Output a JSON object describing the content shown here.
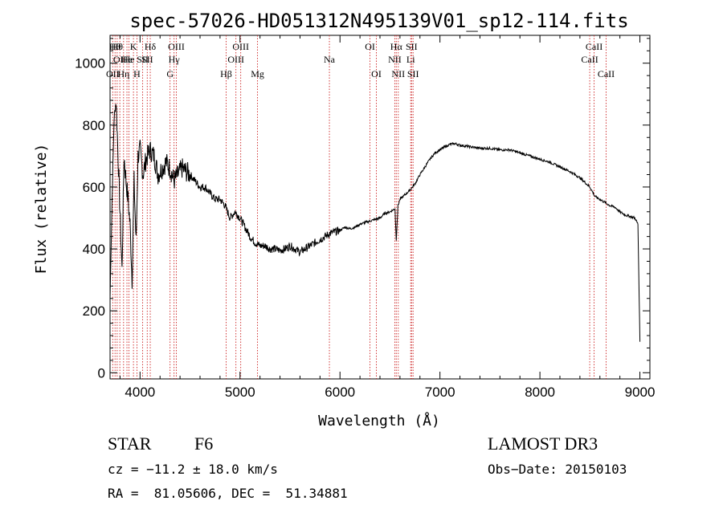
{
  "chart_data": {
    "type": "line",
    "title": "spec-57026-HD051312N495139V01_sp12-114.fits",
    "xlabel": "Wavelength (Å)",
    "ylabel": "Flux (relative)",
    "xlim": [
      3700,
      9100
    ],
    "ylim": [
      -20,
      1090
    ],
    "xticks": [
      4000,
      5000,
      6000,
      7000,
      8000,
      9000
    ],
    "xtick_labels": [
      "4000",
      "5000",
      "6000",
      "7000",
      "8000",
      "9000"
    ],
    "yticks": [
      0,
      200,
      400,
      600,
      800,
      1000
    ],
    "ytick_labels": [
      "0",
      "200",
      "400",
      "600",
      "800",
      "1000"
    ],
    "series": [
      {
        "name": "flux",
        "x": [
          3700,
          3720,
          3740,
          3760,
          3780,
          3800,
          3820,
          3840,
          3860,
          3880,
          3900,
          3920,
          3940,
          3960,
          3980,
          4000,
          4030,
          4060,
          4100,
          4140,
          4180,
          4220,
          4260,
          4300,
          4340,
          4380,
          4420,
          4460,
          4500,
          4550,
          4600,
          4650,
          4700,
          4750,
          4800,
          4850,
          4900,
          4950,
          5000,
          5050,
          5100,
          5150,
          5200,
          5250,
          5300,
          5350,
          5400,
          5450,
          5500,
          5550,
          5600,
          5650,
          5700,
          5750,
          5800,
          5850,
          5900,
          5950,
          6000,
          6050,
          6100,
          6150,
          6200,
          6250,
          6300,
          6350,
          6400,
          6450,
          6500,
          6550,
          6563,
          6580,
          6600,
          6650,
          6700,
          6750,
          6800,
          6850,
          6900,
          6950,
          7000,
          7050,
          7100,
          7150,
          7200,
          7300,
          7400,
          7500,
          7600,
          7700,
          7800,
          7900,
          8000,
          8100,
          8200,
          8300,
          8400,
          8500,
          8550,
          8600,
          8650,
          8700,
          8750,
          8800,
          8850,
          8900,
          8950,
          8980,
          9000
        ],
        "y": [
          240,
          560,
          820,
          880,
          700,
          520,
          330,
          700,
          620,
          560,
          480,
          300,
          620,
          420,
          700,
          720,
          640,
          690,
          720,
          700,
          640,
          660,
          680,
          660,
          620,
          640,
          660,
          650,
          640,
          620,
          600,
          600,
          580,
          560,
          560,
          540,
          500,
          520,
          500,
          470,
          440,
          420,
          410,
          410,
          400,
          400,
          395,
          400,
          410,
          400,
          390,
          400,
          410,
          420,
          430,
          440,
          450,
          455,
          460,
          470,
          465,
          470,
          480,
          485,
          490,
          495,
          500,
          515,
          520,
          530,
          430,
          540,
          560,
          575,
          590,
          610,
          640,
          665,
          690,
          710,
          720,
          730,
          738,
          740,
          735,
          730,
          725,
          725,
          720,
          720,
          710,
          700,
          690,
          680,
          665,
          650,
          630,
          600,
          570,
          560,
          550,
          540,
          535,
          520,
          510,
          505,
          500,
          480,
          100
        ]
      }
    ],
    "lines": [
      {
        "wl": 3727,
        "label": "OII",
        "row": 3
      },
      {
        "wl": 3750,
        "label": "Hθ",
        "row": 1
      },
      {
        "wl": 3771,
        "label": "Hθ",
        "row": 1
      },
      {
        "wl": 3798,
        "label": "OII",
        "row": 2
      },
      {
        "wl": 3835,
        "label": "Hη",
        "row": 3
      },
      {
        "wl": 3869,
        "label": "He",
        "row": 2
      },
      {
        "wl": 3889,
        "label": "He",
        "row": 2
      },
      {
        "wl": 3934,
        "label": "K",
        "row": 1
      },
      {
        "wl": 3969,
        "label": "H",
        "row": 3
      },
      {
        "wl": 4026,
        "label": "SII",
        "row": 2
      },
      {
        "wl": 4072,
        "label": "SII",
        "row": 2
      },
      {
        "wl": 4102,
        "label": "Hδ",
        "row": 1
      },
      {
        "wl": 4300,
        "label": "G",
        "row": 3
      },
      {
        "wl": 4340,
        "label": "Hγ",
        "row": 2
      },
      {
        "wl": 4363,
        "label": "OIII",
        "row": 1
      },
      {
        "wl": 4861,
        "label": "Hβ",
        "row": 3
      },
      {
        "wl": 4959,
        "label": "OIII",
        "row": 2
      },
      {
        "wl": 5007,
        "label": "OIII",
        "row": 1
      },
      {
        "wl": 5175,
        "label": "Mg",
        "row": 3
      },
      {
        "wl": 5894,
        "label": "Na",
        "row": 2
      },
      {
        "wl": 6300,
        "label": "OI",
        "row": 1
      },
      {
        "wl": 6364,
        "label": "OI",
        "row": 3
      },
      {
        "wl": 6548,
        "label": "NII",
        "row": 2
      },
      {
        "wl": 6563,
        "label": "Hα",
        "row": 1
      },
      {
        "wl": 6583,
        "label": "NII",
        "row": 3
      },
      {
        "wl": 6707,
        "label": "Li",
        "row": 2
      },
      {
        "wl": 6716,
        "label": "SII",
        "row": 1
      },
      {
        "wl": 6731,
        "label": "SII",
        "row": 3
      },
      {
        "wl": 8498,
        "label": "CaII",
        "row": 2
      },
      {
        "wl": 8542,
        "label": "CaII",
        "row": 1
      },
      {
        "wl": 8662,
        "label": "CaII",
        "row": 3
      }
    ]
  },
  "info": {
    "class": "STAR",
    "subclass": "F6",
    "survey": "LAMOST DR3",
    "cz": "cz = −11.2 ± 18.0 km/s",
    "obs_date": "Obs−Date: 20150103",
    "radec": "RA =  81.05606, DEC =  51.34881"
  }
}
